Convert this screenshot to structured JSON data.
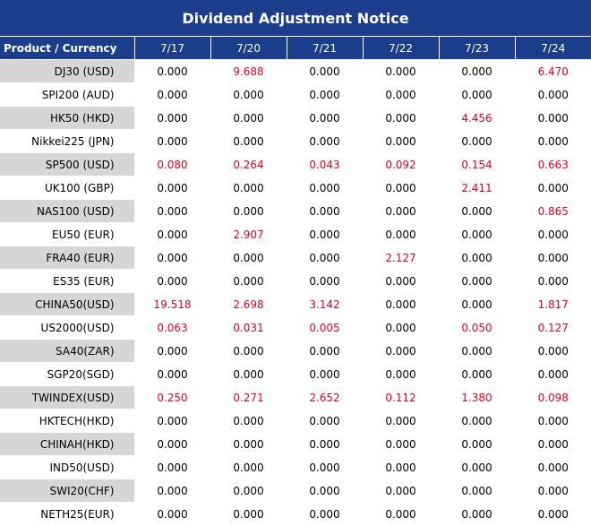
{
  "title": "Dividend Adjustment Notice",
  "header": {
    "product": "Product / Currency",
    "dates": [
      "7/17",
      "7/20",
      "7/21",
      "7/22",
      "7/23",
      "7/24"
    ]
  },
  "colors": {
    "header_bg": "#1c3c8c",
    "header_text": "#ffffff",
    "highlight": "#e6001e",
    "row_shade": "#d6d6d6"
  },
  "rows": [
    {
      "product": "DJ30 (USD)",
      "values": [
        "0.000",
        "9.688",
        "0.000",
        "0.000",
        "0.000",
        "6.470"
      ]
    },
    {
      "product": "SPI200 (AUD)",
      "values": [
        "0.000",
        "0.000",
        "0.000",
        "0.000",
        "0.000",
        "0.000"
      ]
    },
    {
      "product": "HK50 (HKD)",
      "values": [
        "0.000",
        "0.000",
        "0.000",
        "0.000",
        "4.456",
        "0.000"
      ]
    },
    {
      "product": "Nikkei225 (JPN)",
      "values": [
        "0.000",
        "0.000",
        "0.000",
        "0.000",
        "0.000",
        "0.000"
      ]
    },
    {
      "product": "SP500 (USD)",
      "values": [
        "0.080",
        "0.264",
        "0.043",
        "0.092",
        "0.154",
        "0.663"
      ]
    },
    {
      "product": "UK100 (GBP)",
      "values": [
        "0.000",
        "0.000",
        "0.000",
        "0.000",
        "2.411",
        "0.000"
      ]
    },
    {
      "product": "NAS100 (USD)",
      "values": [
        "0.000",
        "0.000",
        "0.000",
        "0.000",
        "0.000",
        "0.865"
      ]
    },
    {
      "product": "EU50 (EUR)",
      "values": [
        "0.000",
        "2.907",
        "0.000",
        "0.000",
        "0.000",
        "0.000"
      ]
    },
    {
      "product": "FRA40 (EUR)",
      "values": [
        "0.000",
        "0.000",
        "0.000",
        "2.127",
        "0.000",
        "0.000"
      ]
    },
    {
      "product": "ES35 (EUR)",
      "values": [
        "0.000",
        "0.000",
        "0.000",
        "0.000",
        "0.000",
        "0.000"
      ]
    },
    {
      "product": "CHINA50(USD)",
      "values": [
        "19.518",
        "2.698",
        "3.142",
        "0.000",
        "0.000",
        "1.817"
      ]
    },
    {
      "product": "US2000(USD)",
      "values": [
        "0.063",
        "0.031",
        "0.005",
        "0.000",
        "0.050",
        "0.127"
      ]
    },
    {
      "product": "SA40(ZAR)",
      "values": [
        "0.000",
        "0.000",
        "0.000",
        "0.000",
        "0.000",
        "0.000"
      ]
    },
    {
      "product": "SGP20(SGD)",
      "values": [
        "0.000",
        "0.000",
        "0.000",
        "0.000",
        "0.000",
        "0.000"
      ]
    },
    {
      "product": "TWINDEX(USD)",
      "values": [
        "0.250",
        "0.271",
        "2.652",
        "0.112",
        "1.380",
        "0.098"
      ]
    },
    {
      "product": "HKTECH(HKD)",
      "values": [
        "0.000",
        "0.000",
        "0.000",
        "0.000",
        "0.000",
        "0.000"
      ]
    },
    {
      "product": "CHINAH(HKD)",
      "values": [
        "0.000",
        "0.000",
        "0.000",
        "0.000",
        "0.000",
        "0.000"
      ]
    },
    {
      "product": "IND50(USD)",
      "values": [
        "0.000",
        "0.000",
        "0.000",
        "0.000",
        "0.000",
        "0.000"
      ]
    },
    {
      "product": "SWI20(CHF)",
      "values": [
        "0.000",
        "0.000",
        "0.000",
        "0.000",
        "0.000",
        "0.000"
      ]
    },
    {
      "product": "NETH25(EUR)",
      "values": [
        "0.000",
        "0.000",
        "0.000",
        "0.000",
        "0.000",
        "0.000"
      ]
    }
  ]
}
